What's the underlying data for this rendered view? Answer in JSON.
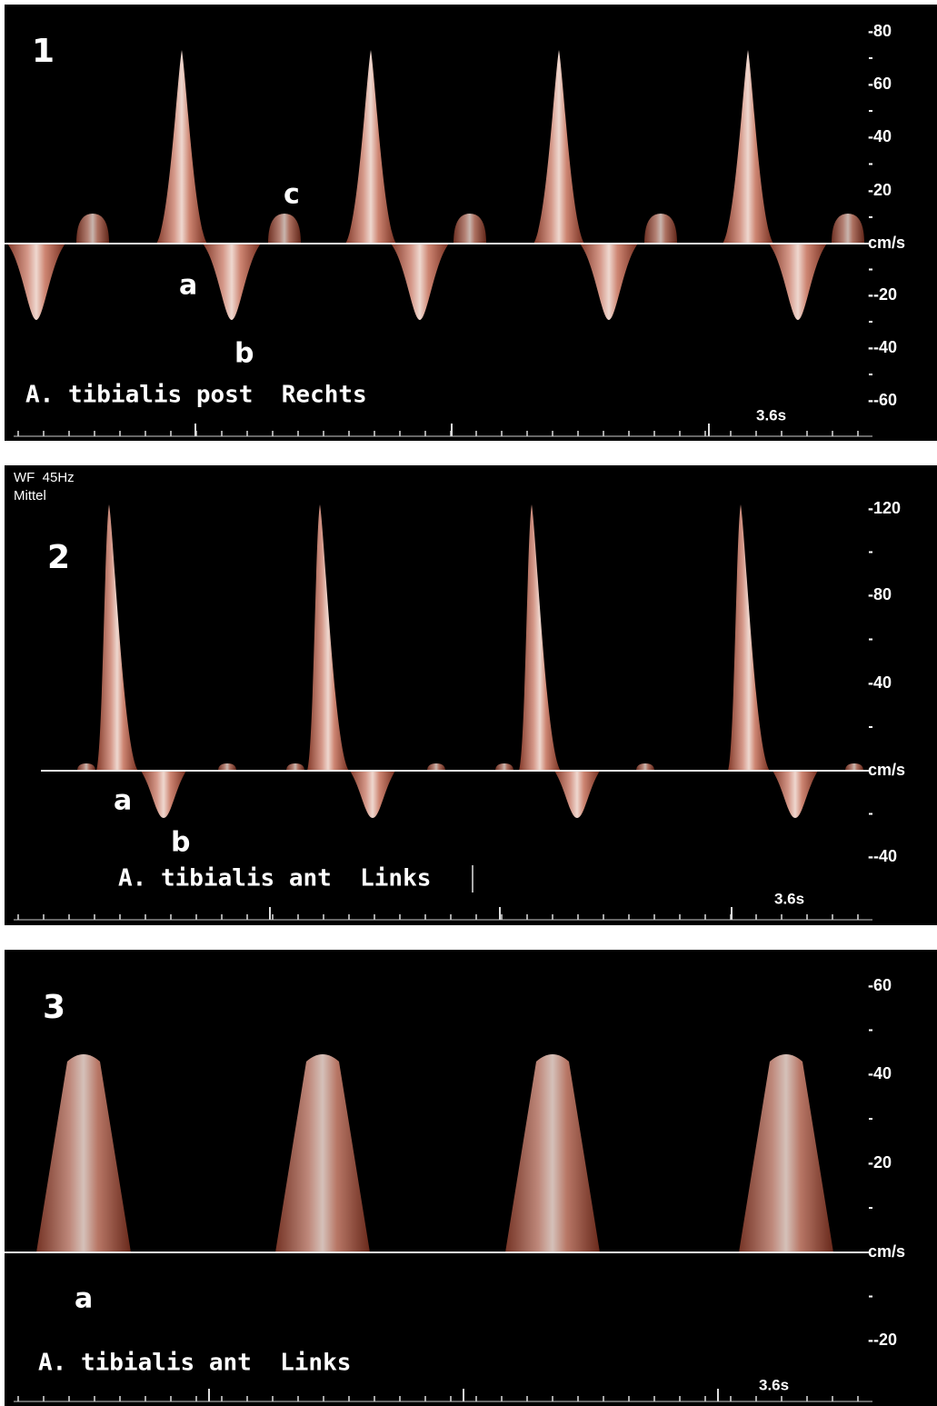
{
  "panels": [
    {
      "number": "1",
      "axis_labels": [
        "-80",
        "-60",
        "-40",
        "-20",
        "cm/s",
        "--20",
        "--40",
        "--60"
      ],
      "annotations": [
        "a",
        "b",
        "c"
      ],
      "caption": "A. tibialis post  Rechts",
      "time": "3.6s"
    },
    {
      "number": "2",
      "settings": [
        "WF  45Hz",
        "Mittel"
      ],
      "axis_labels": [
        "-120",
        "-80",
        "-40",
        "cm/s",
        "--40"
      ],
      "annotations": [
        "a",
        "b"
      ],
      "caption": "A. tibialis ant  Links",
      "time": "3.6s"
    },
    {
      "number": "3",
      "axis_labels": [
        "-60",
        "-40",
        "-20",
        "cm/s",
        "--20"
      ],
      "annotations": [
        "a"
      ],
      "caption": "A. tibialis ant  Links",
      "time": "3.6s"
    }
  ]
}
